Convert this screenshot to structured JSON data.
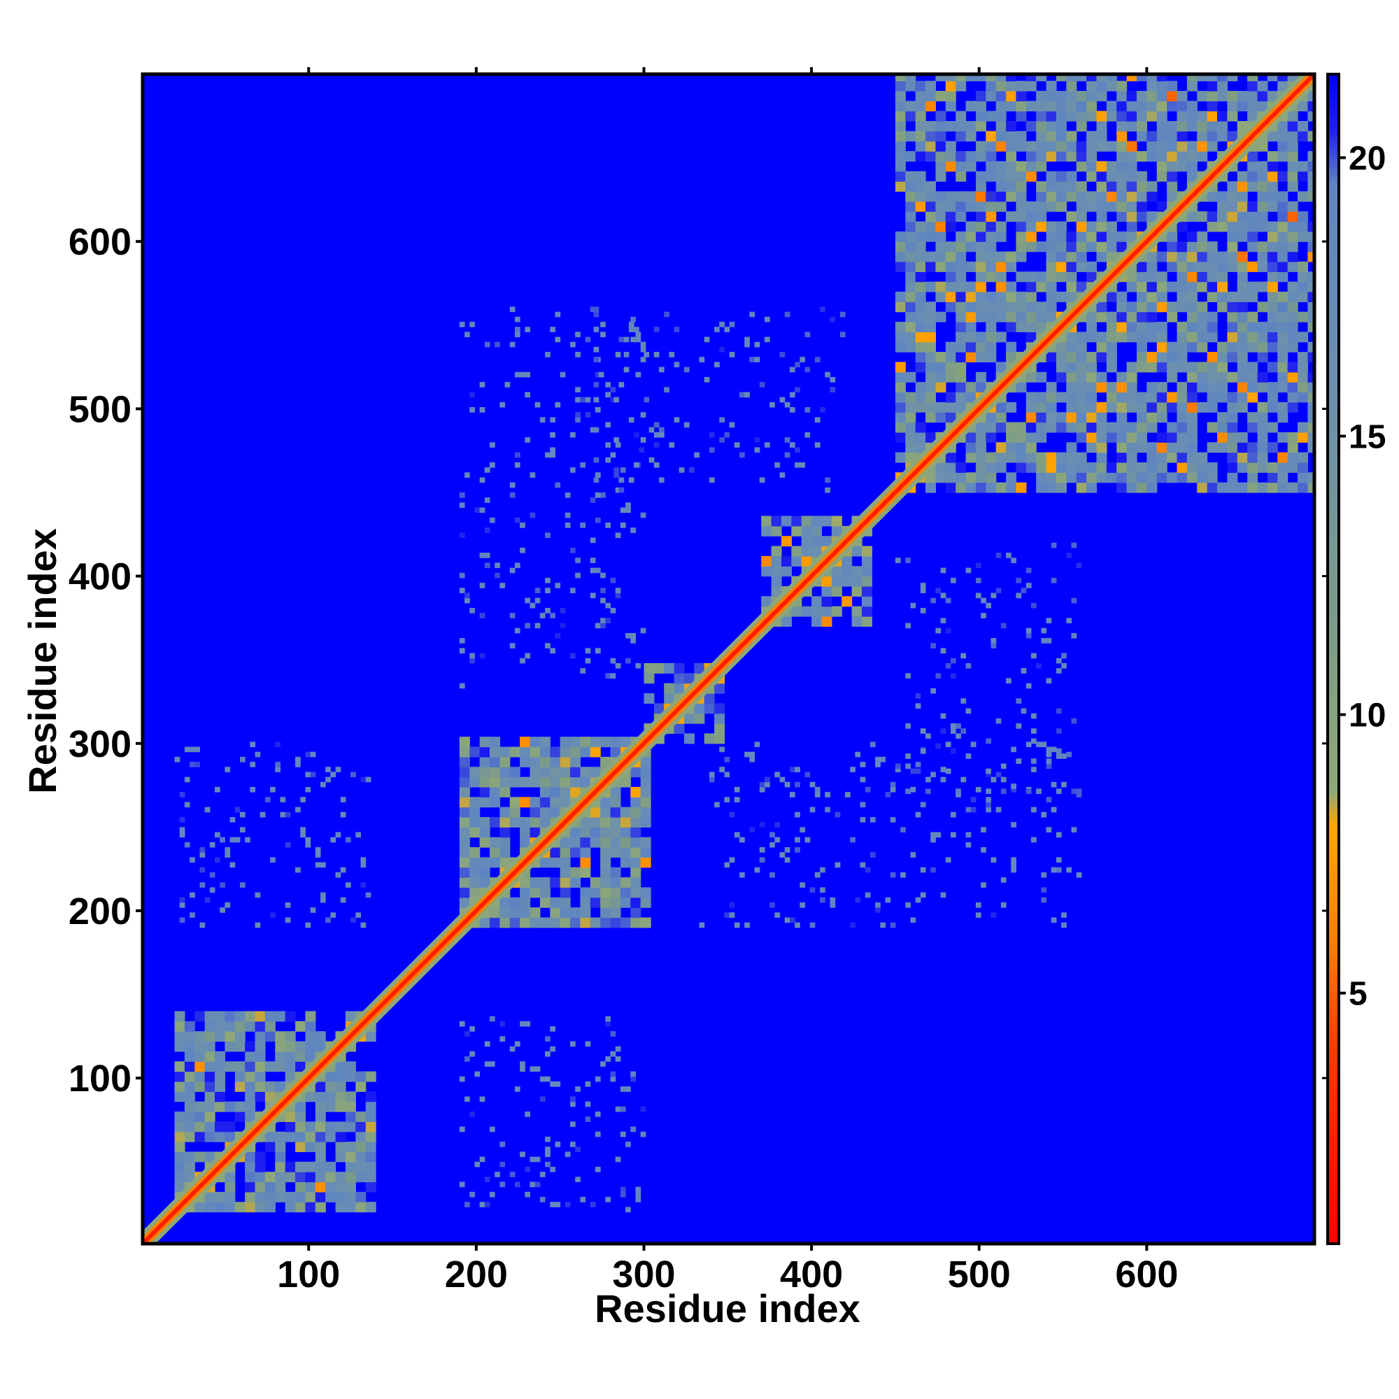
{
  "chart_data": {
    "type": "heatmap",
    "title": "",
    "xlabel": "Residue index",
    "ylabel": "Residue index",
    "xlim": [
      1,
      700
    ],
    "ylim": [
      1,
      700
    ],
    "x_ticks": [
      100,
      200,
      300,
      400,
      500,
      600
    ],
    "y_ticks": [
      100,
      200,
      300,
      400,
      500,
      600
    ],
    "colorbar": {
      "ticks": [
        5,
        10,
        15,
        20
      ],
      "range": [
        0.5,
        21.5
      ],
      "stops": [
        {
          "value": 0.5,
          "color": "#ff0000"
        },
        {
          "value": 4,
          "color": "#ff3a00"
        },
        {
          "value": 6,
          "color": "#ff8000"
        },
        {
          "value": 8,
          "color": "#ffa500"
        },
        {
          "value": 8.6,
          "color": "#8fa878"
        },
        {
          "value": 12,
          "color": "#7a9a8a"
        },
        {
          "value": 16,
          "color": "#6b8fb0"
        },
        {
          "value": 19.5,
          "color": "#5f86c0"
        },
        {
          "value": 20.5,
          "color": "#1f1ff0"
        },
        {
          "value": 21.5,
          "color": "#0000ff"
        }
      ]
    },
    "background_color": "#0000ff",
    "diagonal_color": "#ff2000",
    "contact_color": "#5f86c0",
    "domains": [
      {
        "start": 20,
        "end": 140,
        "mean_distance": 18
      },
      {
        "start": 190,
        "end": 300,
        "mean_distance": 18
      },
      {
        "start": 300,
        "end": 345,
        "mean_distance": 19
      },
      {
        "start": 370,
        "end": 435,
        "mean_distance": 19
      },
      {
        "start": 450,
        "end": 700,
        "mean_distance": 18
      }
    ],
    "inter_domain_contacts": [
      {
        "x": [
          20,
          140
        ],
        "y": [
          190,
          300
        ],
        "mean_distance": 20.5
      },
      {
        "x": [
          190,
          300
        ],
        "y": [
          330,
          560
        ],
        "mean_distance": 20.5
      },
      {
        "x": [
          450,
          560
        ],
        "y": [
          270,
          420
        ],
        "mean_distance": 20.5
      }
    ]
  }
}
